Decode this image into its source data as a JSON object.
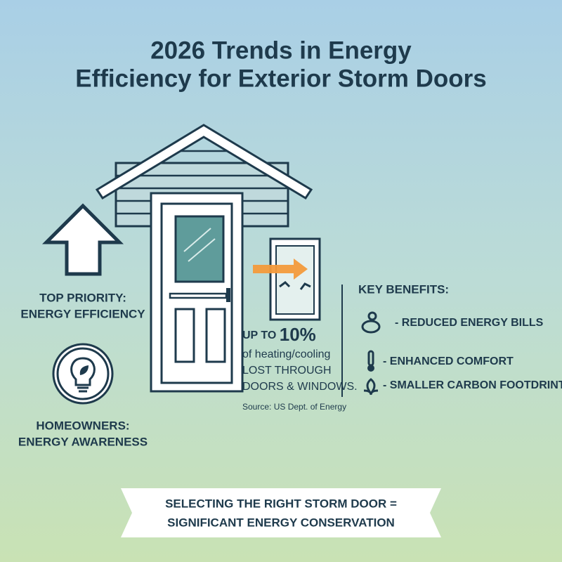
{
  "header": {
    "title_lines": [
      "2026 Trends in Energy",
      "Efficiency for Exterior Storm Doors"
    ]
  },
  "left": {
    "priority": {
      "label": "TOP PRIORITY:",
      "value": "ENERGY EFFICIENCY"
    },
    "awareness": {
      "label": "HOMEOWNERS:",
      "value": "ENERGY AWARENESS"
    }
  },
  "stat": {
    "prefix": "UP TO",
    "figure": "10%",
    "lines": [
      "of heating/cooling",
      "LOST THROUGH",
      "DOORS & WINDOWS."
    ],
    "source": "Source: US Dept. of Energy"
  },
  "benefits": {
    "heading": "KEY BENEFITS:",
    "items": [
      "- REDUCED ENERGY BILLS",
      "- ENHANCED COMFORT",
      "- SMALLER CARBON FOOTDRINT"
    ]
  },
  "banner": {
    "lines": [
      "SELECTING THE RIGHT STORM DOOR =",
      "SIGNIFICANT ENERGY CONSERVATION"
    ]
  }
}
